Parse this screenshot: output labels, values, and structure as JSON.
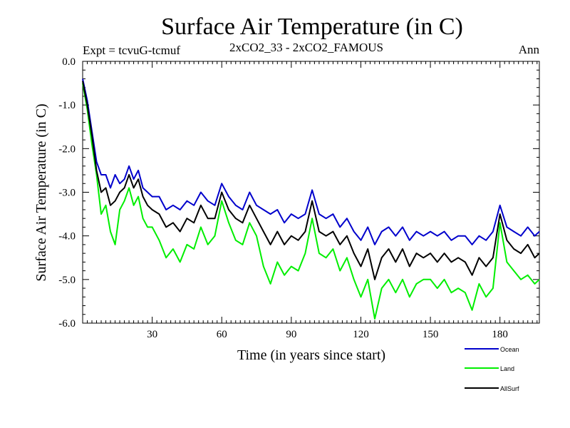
{
  "chart_data": {
    "type": "line",
    "title": "Surface Air Temperature (in C)",
    "subtitle_left": "Expt = tcvuG-tcmuf",
    "subtitle_center": "2xCO2_33 - 2xCO2_FAMOUS",
    "subtitle_right": "Ann",
    "xlabel": "Time (in years since start)",
    "ylabel": "Surface Air Temperature (in C)",
    "xlim": [
      0,
      197
    ],
    "ylim": [
      -6.0,
      0.0
    ],
    "xticks": [
      30,
      60,
      90,
      120,
      150,
      180
    ],
    "xtick_labels": [
      "30",
      "60",
      "90",
      "120",
      "150",
      "180"
    ],
    "yticks": [
      0.0,
      -1.0,
      -2.0,
      -3.0,
      -4.0,
      -5.0,
      -6.0
    ],
    "ytick_labels": [
      "0.0",
      "-1.0",
      "-2.0",
      "-3.0",
      "-4.0",
      "-5.0",
      "-6.0"
    ],
    "grid": false,
    "legend_position": "bottom-right",
    "series": [
      {
        "name": "Ocean",
        "color": "#0000cc",
        "x": [
          0,
          2,
          4,
          6,
          8,
          10,
          12,
          14,
          16,
          18,
          20,
          22,
          24,
          26,
          28,
          30,
          33,
          36,
          39,
          42,
          45,
          48,
          51,
          54,
          57,
          60,
          63,
          66,
          69,
          72,
          75,
          78,
          81,
          84,
          87,
          90,
          93,
          96,
          99,
          102,
          105,
          108,
          111,
          114,
          117,
          120,
          123,
          126,
          129,
          132,
          135,
          138,
          141,
          144,
          147,
          150,
          153,
          156,
          159,
          162,
          165,
          168,
          171,
          174,
          177,
          180,
          183,
          186,
          189,
          192,
          195,
          197
        ],
        "values": [
          -0.4,
          -0.9,
          -1.6,
          -2.3,
          -2.6,
          -2.6,
          -2.9,
          -2.6,
          -2.8,
          -2.7,
          -2.4,
          -2.7,
          -2.5,
          -2.9,
          -3.0,
          -3.1,
          -3.1,
          -3.4,
          -3.3,
          -3.4,
          -3.2,
          -3.3,
          -3.0,
          -3.2,
          -3.3,
          -2.8,
          -3.1,
          -3.3,
          -3.4,
          -3.0,
          -3.3,
          -3.4,
          -3.5,
          -3.4,
          -3.7,
          -3.5,
          -3.6,
          -3.5,
          -2.95,
          -3.5,
          -3.6,
          -3.5,
          -3.8,
          -3.6,
          -3.9,
          -4.1,
          -3.8,
          -4.2,
          -3.9,
          -3.8,
          -4.0,
          -3.8,
          -4.1,
          -3.9,
          -4.0,
          -3.9,
          -4.0,
          -3.9,
          -4.1,
          -4.0,
          -4.0,
          -4.2,
          -4.0,
          -4.1,
          -3.9,
          -3.3,
          -3.8,
          -3.9,
          -4.0,
          -3.8,
          -4.0,
          -3.9
        ]
      },
      {
        "name": "Land",
        "color": "#00ee00",
        "x": [
          0,
          2,
          4,
          6,
          8,
          10,
          12,
          14,
          16,
          18,
          20,
          22,
          24,
          26,
          28,
          30,
          33,
          36,
          39,
          42,
          45,
          48,
          51,
          54,
          57,
          60,
          63,
          66,
          69,
          72,
          75,
          78,
          81,
          84,
          87,
          90,
          93,
          96,
          99,
          102,
          105,
          108,
          111,
          114,
          117,
          120,
          123,
          126,
          129,
          132,
          135,
          138,
          141,
          144,
          147,
          150,
          153,
          156,
          159,
          162,
          165,
          168,
          171,
          174,
          177,
          180,
          183,
          186,
          189,
          192,
          195,
          197
        ],
        "values": [
          -0.5,
          -1.1,
          -1.9,
          -2.6,
          -3.5,
          -3.3,
          -3.9,
          -4.2,
          -3.4,
          -3.2,
          -2.9,
          -3.3,
          -3.1,
          -3.6,
          -3.8,
          -3.8,
          -4.1,
          -4.5,
          -4.3,
          -4.6,
          -4.2,
          -4.3,
          -3.8,
          -4.2,
          -4.0,
          -3.2,
          -3.7,
          -4.1,
          -4.2,
          -3.7,
          -4.0,
          -4.7,
          -5.1,
          -4.6,
          -4.9,
          -4.7,
          -4.8,
          -4.4,
          -3.6,
          -4.4,
          -4.5,
          -4.3,
          -4.8,
          -4.5,
          -5.0,
          -5.4,
          -5.0,
          -5.9,
          -5.2,
          -5.0,
          -5.3,
          -5.0,
          -5.4,
          -5.1,
          -5.0,
          -5.0,
          -5.2,
          -5.0,
          -5.3,
          -5.2,
          -5.3,
          -5.7,
          -5.1,
          -5.4,
          -5.2,
          -3.7,
          -4.6,
          -4.8,
          -5.0,
          -4.9,
          -5.1,
          -5.0
        ]
      },
      {
        "name": "AllSurf",
        "color": "#000000",
        "x": [
          0,
          2,
          4,
          6,
          8,
          10,
          12,
          14,
          16,
          18,
          20,
          22,
          24,
          26,
          28,
          30,
          33,
          36,
          39,
          42,
          45,
          48,
          51,
          54,
          57,
          60,
          63,
          66,
          69,
          72,
          75,
          78,
          81,
          84,
          87,
          90,
          93,
          96,
          99,
          102,
          105,
          108,
          111,
          114,
          117,
          120,
          123,
          126,
          129,
          132,
          135,
          138,
          141,
          144,
          147,
          150,
          153,
          156,
          159,
          162,
          165,
          168,
          171,
          174,
          177,
          180,
          183,
          186,
          189,
          192,
          195,
          197
        ],
        "values": [
          -0.45,
          -1.0,
          -1.7,
          -2.5,
          -3.0,
          -2.9,
          -3.3,
          -3.2,
          -3.0,
          -2.9,
          -2.6,
          -2.9,
          -2.7,
          -3.1,
          -3.3,
          -3.4,
          -3.5,
          -3.8,
          -3.7,
          -3.9,
          -3.6,
          -3.7,
          -3.3,
          -3.6,
          -3.6,
          -3.0,
          -3.4,
          -3.6,
          -3.7,
          -3.3,
          -3.6,
          -3.9,
          -4.2,
          -3.9,
          -4.2,
          -4.0,
          -4.1,
          -3.9,
          -3.2,
          -3.9,
          -4.0,
          -3.9,
          -4.2,
          -4.0,
          -4.4,
          -4.7,
          -4.3,
          -5.0,
          -4.5,
          -4.3,
          -4.6,
          -4.3,
          -4.7,
          -4.4,
          -4.5,
          -4.4,
          -4.6,
          -4.4,
          -4.6,
          -4.5,
          -4.6,
          -4.9,
          -4.5,
          -4.7,
          -4.5,
          -3.5,
          -4.1,
          -4.3,
          -4.4,
          -4.2,
          -4.5,
          -4.4
        ]
      }
    ]
  }
}
